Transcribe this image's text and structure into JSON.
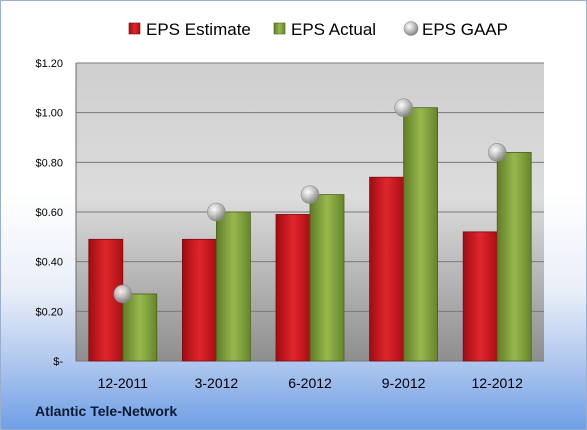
{
  "chart_data": {
    "type": "bar",
    "categories": [
      "12-2011",
      "3-2012",
      "6-2012",
      "9-2012",
      "12-2012"
    ],
    "series": [
      {
        "name": "EPS Estimate",
        "type": "bar",
        "color": "#c8141b",
        "values": [
          0.49,
          0.49,
          0.59,
          0.74,
          0.52
        ]
      },
      {
        "name": "EPS Actual",
        "type": "bar",
        "color": "#7f9f3a",
        "values": [
          0.27,
          0.6,
          0.67,
          1.02,
          0.84
        ]
      },
      {
        "name": "EPS GAAP",
        "type": "marker",
        "color": "#b8b8b8",
        "values": [
          0.27,
          0.6,
          0.67,
          1.02,
          0.84
        ]
      }
    ],
    "ylim": [
      0,
      1.2
    ],
    "yticks": [
      0,
      0.2,
      0.4,
      0.6,
      0.8,
      1.0,
      1.2
    ],
    "ytick_labels": [
      "$-",
      "$0.20",
      "$0.40",
      "$0.60",
      "$0.80",
      "$1.00",
      "$1.20"
    ],
    "grid": true,
    "legend_position": "top"
  },
  "footer": {
    "company": "Atlantic Tele-Network"
  }
}
